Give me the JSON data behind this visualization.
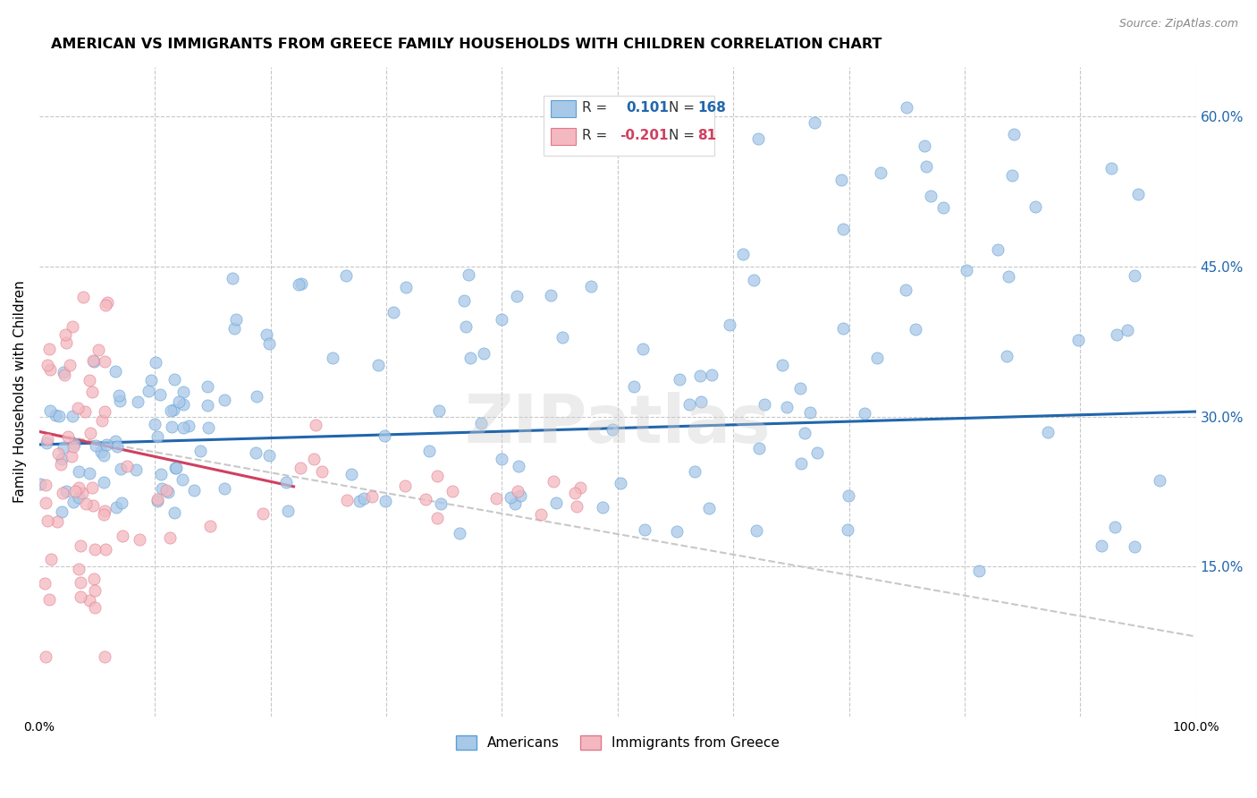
{
  "title": "AMERICAN VS IMMIGRANTS FROM GREECE FAMILY HOUSEHOLDS WITH CHILDREN CORRELATION CHART",
  "source": "Source: ZipAtlas.com",
  "ylabel": "Family Households with Children",
  "xlim": [
    0.0,
    1.0
  ],
  "ylim": [
    0.0,
    0.65
  ],
  "yticks": [
    0.15,
    0.3,
    0.45,
    0.6
  ],
  "ytick_labels": [
    "15.0%",
    "30.0%",
    "45.0%",
    "60.0%"
  ],
  "xticks": [
    0.0,
    0.1,
    0.2,
    0.3,
    0.4,
    0.5,
    0.6,
    0.7,
    0.8,
    0.9,
    1.0
  ],
  "xtick_labels": [
    "0.0%",
    "",
    "",
    "",
    "",
    "",
    "",
    "",
    "",
    "",
    "100.0%"
  ],
  "blue_color": "#a8c8e8",
  "pink_color": "#f4b8c0",
  "blue_edge_color": "#5a9fd4",
  "pink_edge_color": "#e07888",
  "blue_line_color": "#2166ac",
  "pink_line_color": "#d04060",
  "pink_dashed_color": "#c8c8c8",
  "grid_color": "#c8c8c8",
  "bg_color": "#ffffff",
  "watermark": "ZIPatlas",
  "legend_R_blue": "0.101",
  "legend_N_blue": "168",
  "legend_R_pink": "-0.201",
  "legend_N_pink": "81",
  "blue_trend_x": [
    0.0,
    1.0
  ],
  "blue_trend_y": [
    0.272,
    0.305
  ],
  "pink_trend_x": [
    0.0,
    0.22
  ],
  "pink_trend_y": [
    0.285,
    0.23
  ],
  "pink_dashed_trend_x": [
    0.0,
    1.0
  ],
  "pink_dashed_trend_y": [
    0.285,
    0.08
  ]
}
